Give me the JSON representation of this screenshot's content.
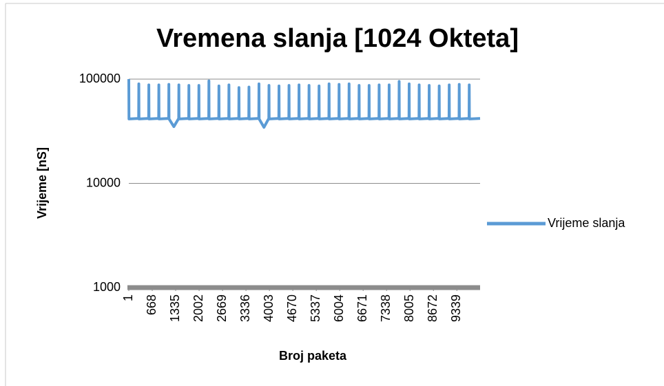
{
  "chart_data": {
    "type": "line",
    "title": "Vremena slanja [1024 Okteta]",
    "x_label": "Broj paketa",
    "y_label": "Vrijeme [nS]",
    "x": [
      1,
      6,
      281,
      286,
      291,
      566,
      571,
      576,
      851,
      856,
      861,
      1136,
      1141,
      1146,
      1283,
      1421,
      1426,
      1431,
      1706,
      1711,
      1716,
      1991,
      1996,
      2001,
      2276,
      2281,
      2286,
      2561,
      2566,
      2571,
      2846,
      2851,
      2856,
      3131,
      3136,
      3141,
      3416,
      3421,
      3426,
      3701,
      3706,
      3711,
      3848,
      3986,
      3991,
      3996,
      4271,
      4276,
      4281,
      4556,
      4561,
      4566,
      4841,
      4846,
      4851,
      5126,
      5131,
      5136,
      5411,
      5416,
      5421,
      5696,
      5701,
      5706,
      5981,
      5986,
      5991,
      6266,
      6271,
      6276,
      6551,
      6556,
      6561,
      6836,
      6841,
      6846,
      7121,
      7126,
      7131,
      7406,
      7411,
      7416,
      7691,
      7696,
      7701,
      7976,
      7981,
      7986,
      8261,
      8266,
      8271,
      8546,
      8551,
      8556,
      8831,
      8836,
      8841,
      9116,
      9121,
      9126,
      9401,
      9406,
      9411,
      9686,
      9691,
      9696,
      10000
    ],
    "series": [
      {
        "name": "Vrijeme slanja",
        "color": "#5b9bd5",
        "values": [
          100000,
          41500,
          42000,
          90000,
          41500,
          42000,
          88000,
          41500,
          42000,
          88000,
          41500,
          42000,
          89000,
          41500,
          35000,
          42000,
          88000,
          41500,
          42000,
          87000,
          41500,
          42000,
          87000,
          41500,
          42000,
          96000,
          41500,
          42000,
          86000,
          41500,
          42000,
          88000,
          41500,
          42000,
          83000,
          41500,
          42000,
          84000,
          41500,
          42000,
          90000,
          41500,
          34500,
          42000,
          87000,
          41500,
          42000,
          86000,
          41500,
          42000,
          87000,
          41500,
          42000,
          88000,
          41500,
          42000,
          87000,
          41500,
          42000,
          86000,
          41500,
          42000,
          90000,
          41500,
          42000,
          89000,
          41500,
          42000,
          90000,
          41500,
          42000,
          87000,
          41500,
          42000,
          87000,
          41500,
          42000,
          88000,
          41500,
          42000,
          88000,
          41500,
          42000,
          95000,
          41500,
          42000,
          90000,
          41500,
          42000,
          88000,
          41500,
          42000,
          87000,
          41500,
          42000,
          86000,
          41500,
          42000,
          88000,
          41500,
          42000,
          89000,
          41500,
          42000,
          88000,
          41500,
          42000
        ]
      }
    ],
    "xlim": [
      1,
      10000
    ],
    "xticks": [
      1,
      668,
      1335,
      2002,
      2669,
      3336,
      4003,
      4670,
      5337,
      6004,
      6671,
      7338,
      8005,
      8672,
      9339
    ],
    "ylim": [
      1000,
      100000
    ],
    "yticks": [
      1000,
      10000,
      100000
    ],
    "log_y": true,
    "grid": true,
    "legend": "right"
  }
}
